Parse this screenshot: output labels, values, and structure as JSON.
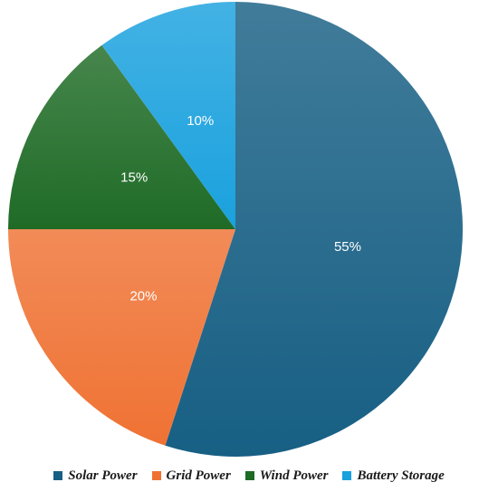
{
  "chart_data": {
    "type": "pie",
    "categories": [
      "Solar Power",
      "Grid Power",
      "Wind Power",
      "Battery Storage"
    ],
    "values": [
      55,
      20,
      15,
      10
    ],
    "data_labels": [
      "55%",
      "20%",
      "15%",
      "10%"
    ],
    "colors": [
      "#175f84",
      "#ef7233",
      "#1f6b26",
      "#1aa1de"
    ],
    "start_angle": "12 o'clock",
    "direction": "clockwise",
    "legend_position": "bottom"
  }
}
